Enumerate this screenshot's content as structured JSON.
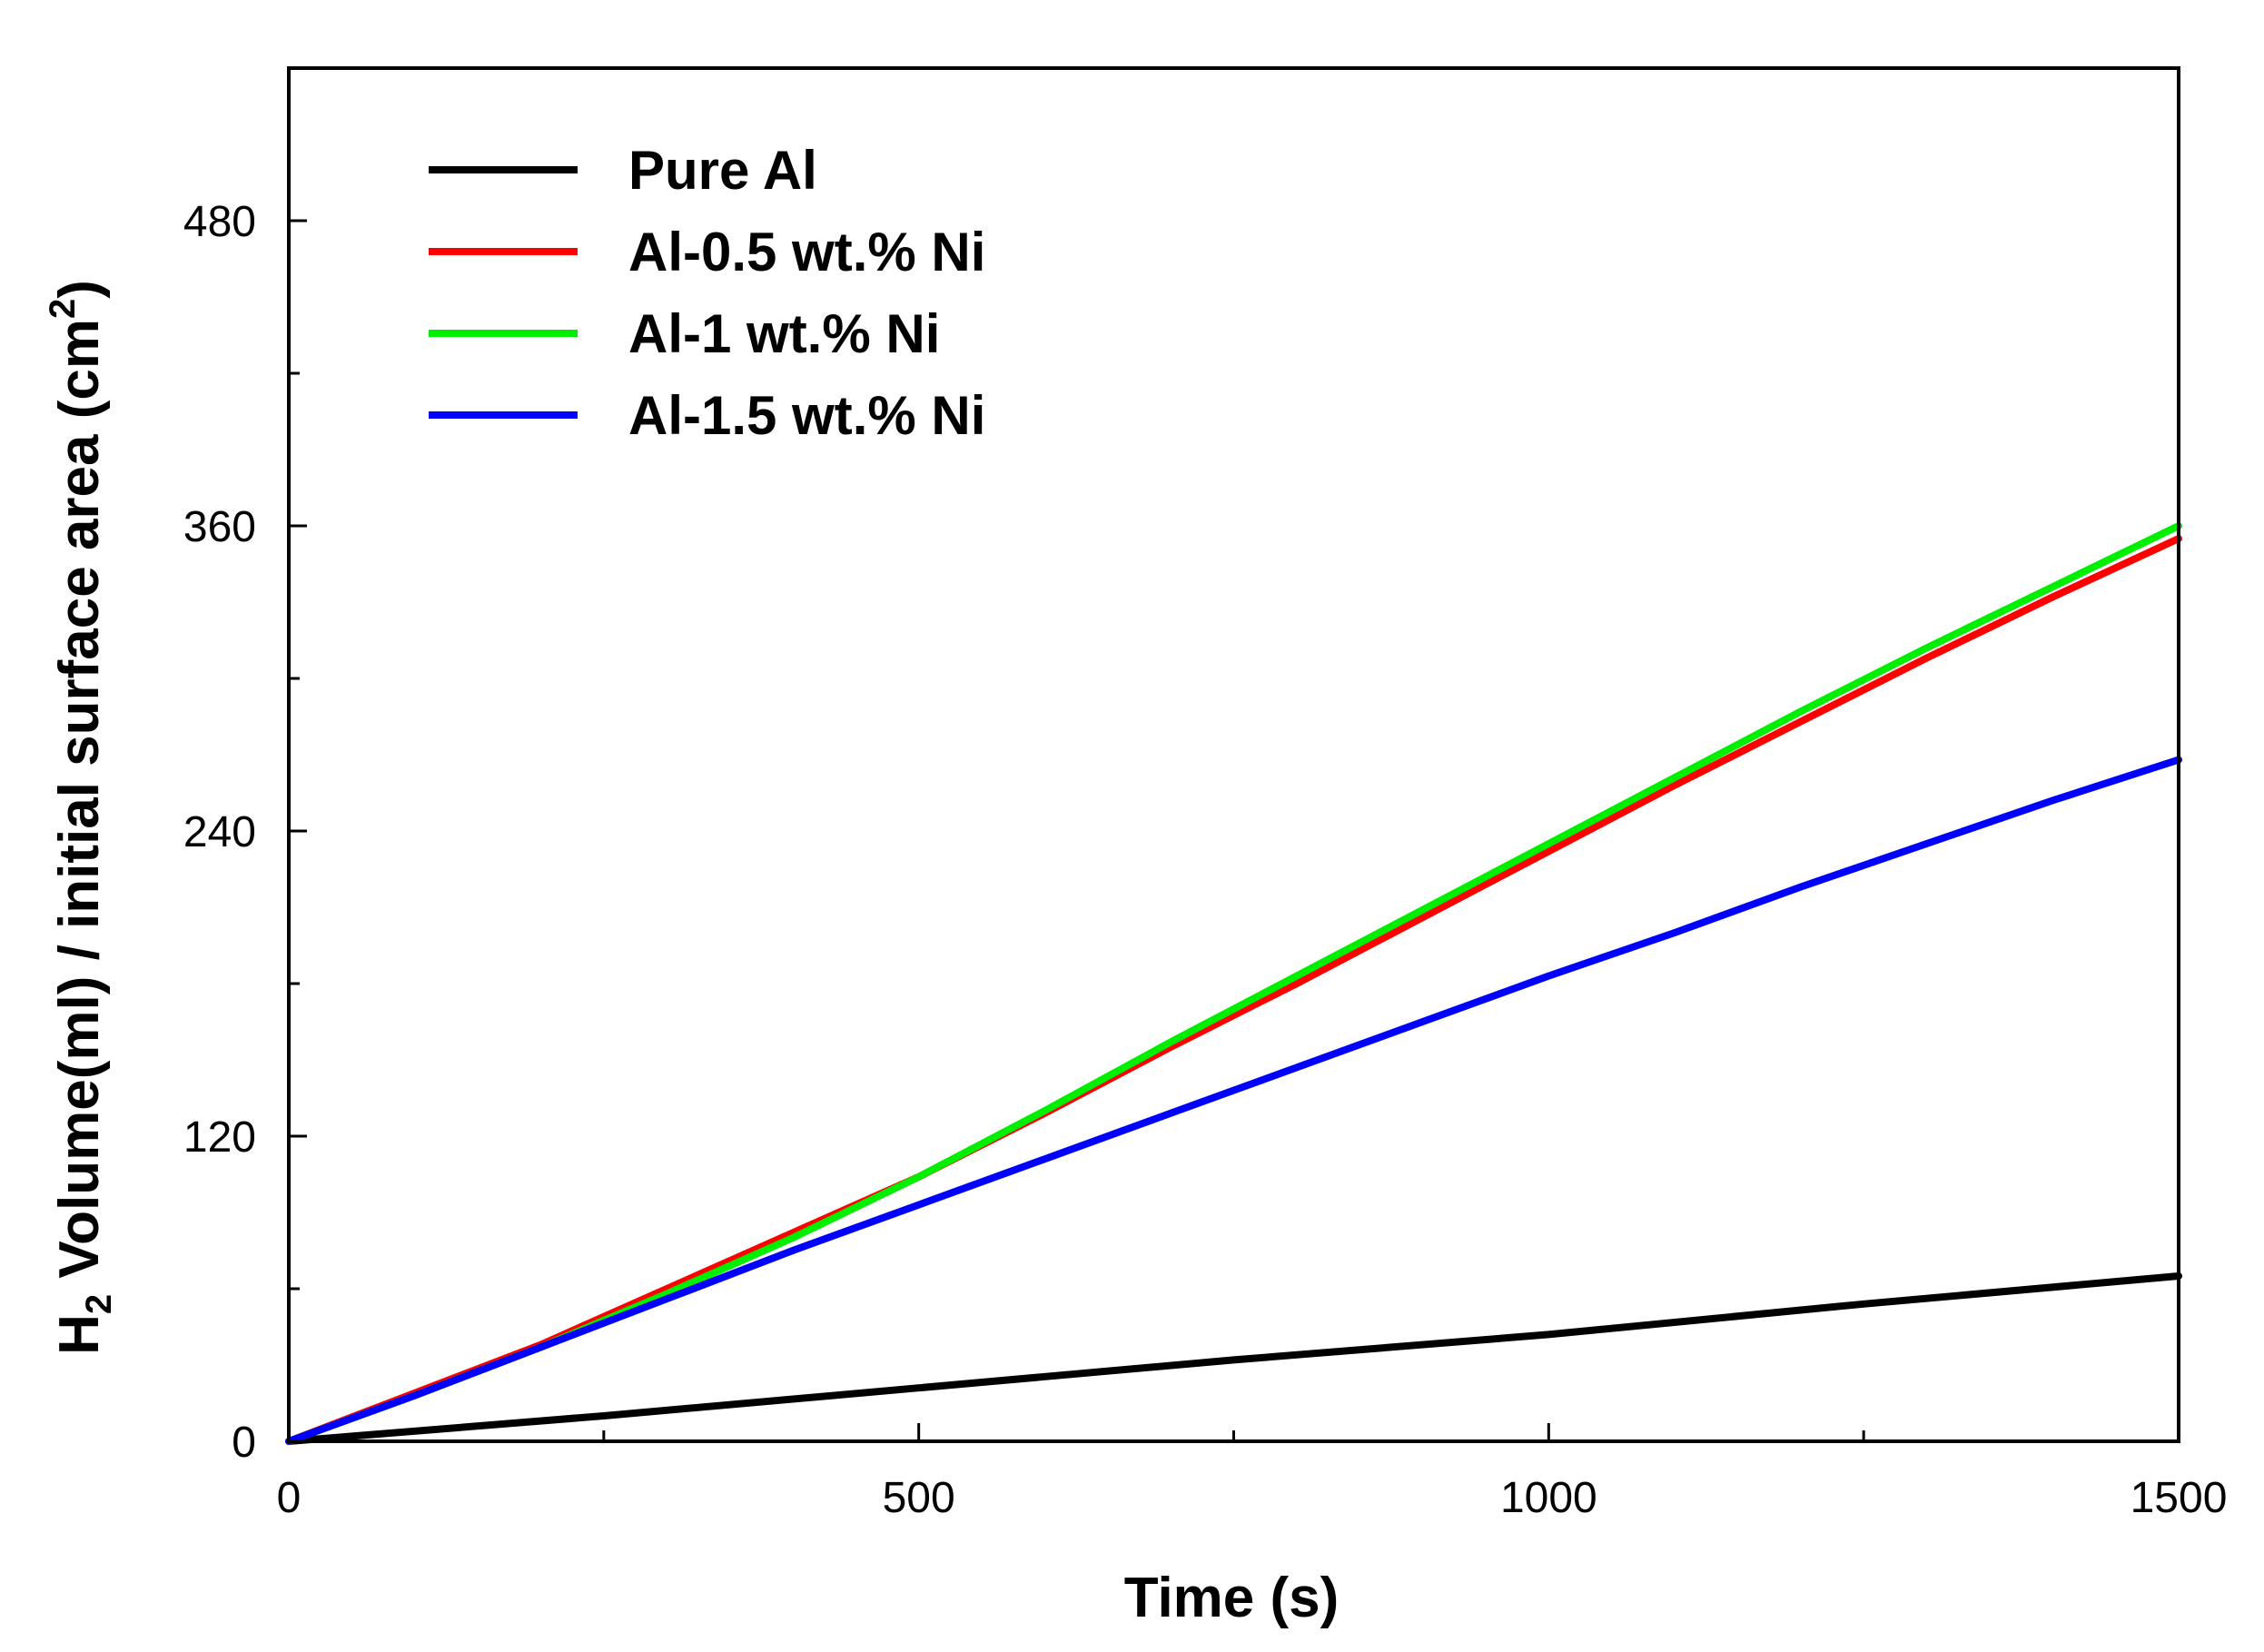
{
  "chart_data": {
    "type": "line",
    "title": "",
    "xlabel": "Time (s)",
    "ylabel": {
      "prefix": "H",
      "subscript": "2",
      "middle": " Volume(ml) / initial surface area (cm",
      "superscript": "2",
      "suffix": ")"
    },
    "xlim": [
      0,
      1500
    ],
    "ylim": [
      0,
      540
    ],
    "x_major_ticks": [
      0,
      500,
      1000,
      1500
    ],
    "x_minor_ticks": [
      250,
      750,
      1250
    ],
    "x_tick_labels": [
      "0",
      "500",
      "1000",
      "1500"
    ],
    "y_major_ticks": [
      0,
      120,
      240,
      360,
      480
    ],
    "y_minor_ticks": [
      60,
      180,
      300,
      420
    ],
    "y_tick_labels": [
      "0",
      "120",
      "240",
      "360",
      "480"
    ],
    "grid": false,
    "legend_position": "top-left",
    "series": [
      {
        "name": "Pure Al",
        "color": "#000000",
        "x": [
          0,
          250,
          500,
          750,
          1000,
          1250,
          1500
        ],
        "y": [
          0,
          10,
          21,
          32,
          42,
          54,
          65
        ]
      },
      {
        "name": "Al-0.5 wt.% Ni",
        "color": "#ff0000",
        "x": [
          0,
          100,
          200,
          300,
          400,
          500,
          600,
          700,
          800,
          900,
          1000,
          1100,
          1200,
          1300,
          1400,
          1500
        ],
        "y": [
          0,
          19,
          38,
          60,
          82,
          104,
          129,
          155,
          180,
          206,
          232,
          258,
          283,
          308,
          332,
          355
        ]
      },
      {
        "name": "Al-1 wt.% Ni",
        "color": "#00ee00",
        "x": [
          0,
          100,
          200,
          300,
          400,
          500,
          600,
          700,
          800,
          900,
          1000,
          1100,
          1200,
          1300,
          1400,
          1500
        ],
        "y": [
          0,
          18,
          37,
          58,
          80,
          104,
          130,
          157,
          183,
          209,
          235,
          261,
          287,
          312,
          336,
          360
        ]
      },
      {
        "name": "Al-1.5 wt.% Ni",
        "color": "#0000ff",
        "x": [
          0,
          100,
          200,
          300,
          400,
          500,
          600,
          700,
          800,
          900,
          1000,
          1100,
          1200,
          1300,
          1400,
          1500
        ],
        "y": [
          0,
          18,
          37,
          56,
          75,
          93,
          111,
          129,
          147,
          165,
          183,
          200,
          218,
          235,
          252,
          268
        ]
      }
    ]
  }
}
